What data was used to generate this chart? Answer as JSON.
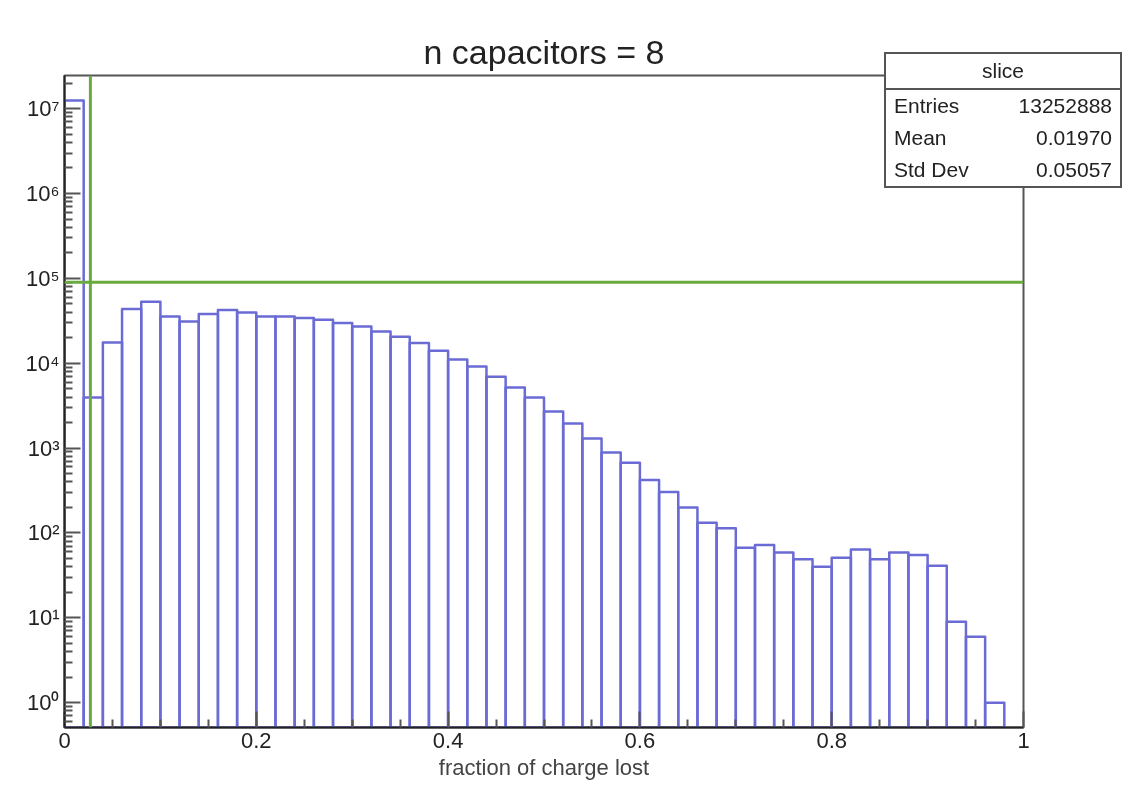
{
  "chart_data": {
    "type": "histogram",
    "title": "n capacitors = 8",
    "xlabel": "fraction of charge lost",
    "bins": [
      0,
      0.02,
      0.04,
      0.06,
      0.08,
      0.1,
      0.12,
      0.14,
      0.16,
      0.18,
      0.2,
      0.22,
      0.24,
      0.26,
      0.28,
      0.3,
      0.32,
      0.34,
      0.36,
      0.38,
      0.4,
      0.42,
      0.44,
      0.46,
      0.48,
      0.5,
      0.52,
      0.54,
      0.56,
      0.58,
      0.6,
      0.62,
      0.64,
      0.66,
      0.68,
      0.7,
      0.72,
      0.74,
      0.76,
      0.78,
      0.8,
      0.82,
      0.84,
      0.86,
      0.88,
      0.9,
      0.92,
      0.94,
      0.96,
      0.98,
      1
    ],
    "values": [
      12500000,
      3950,
      17600,
      43500,
      53100,
      35600,
      31100,
      38000,
      42400,
      39700,
      35600,
      35600,
      34100,
      32600,
      29800,
      27100,
      23700,
      20500,
      17300,
      14000,
      11100,
      9160,
      6930,
      5190,
      3950,
      2700,
      1950,
      1300,
      887,
      671,
      420,
      303,
      200,
      132,
      114,
      67,
      72,
      59,
      49,
      40,
      51,
      64,
      49,
      59,
      55,
      41,
      9,
      6,
      1,
      null
    ],
    "color": "#6b6bd6",
    "xlim": [
      0,
      1
    ],
    "ylim": [
      0.51,
      24600000
    ],
    "log": true,
    "grid": false,
    "xticks": [
      0,
      0.2,
      0.4,
      0.6,
      0.8,
      1
    ],
    "yticks": [
      {
        "value": 1,
        "label": "10⁰"
      },
      {
        "value": 10,
        "label": "10¹"
      },
      {
        "value": 100,
        "label": "10²"
      },
      {
        "value": 1000,
        "label": "10³"
      },
      {
        "value": 10000,
        "label": "10⁴"
      },
      {
        "value": 100000,
        "label": "10⁵"
      },
      {
        "value": 1000000,
        "label": "10⁶"
      },
      {
        "value": 10000000,
        "label": "10⁷"
      }
    ],
    "ref_lines": [
      {
        "axis": "x",
        "value": 0.027,
        "color": "#6aaa3f"
      },
      {
        "axis": "y",
        "value": 90000,
        "color": "#6aaa3f"
      }
    ],
    "annotations": [
      "slice",
      "Entries 13252888",
      "Mean 0.01970",
      "Std Dev 0.05057"
    ]
  }
}
